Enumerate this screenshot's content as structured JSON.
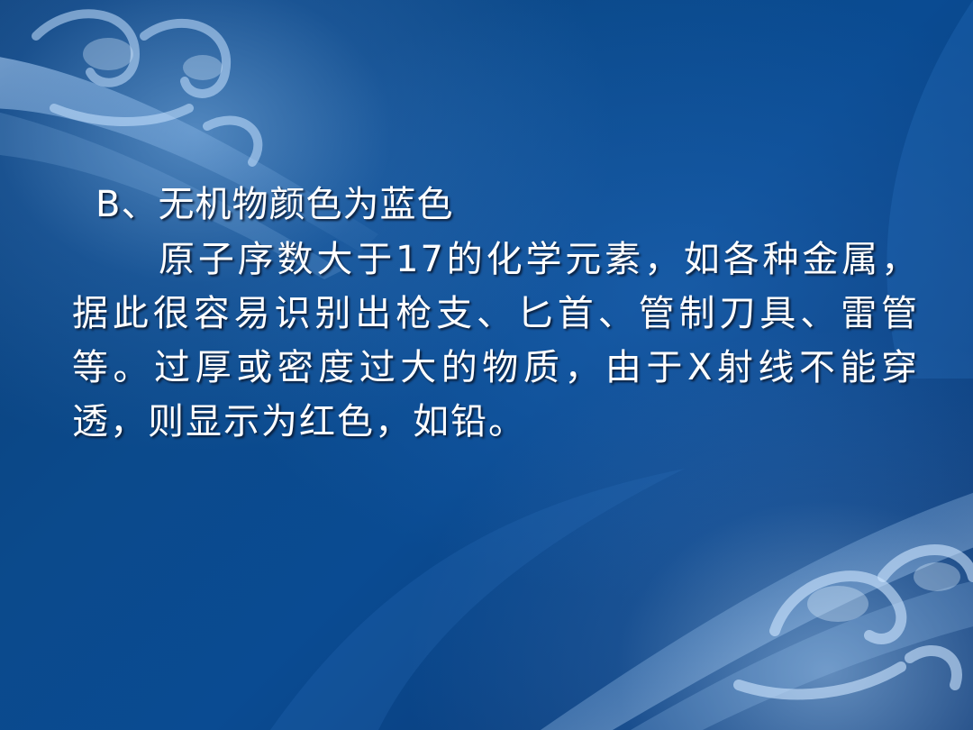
{
  "slide": {
    "heading": "B、无机物颜色为蓝色",
    "paragraph": "原子序数大于17的化学元素，如各种金属，据此很容易识别出枪支、匕首、管制刀具、雷管等。过厚或密度过大的物质，由于X射线不能穿透，则显示为红色，如铅。"
  }
}
